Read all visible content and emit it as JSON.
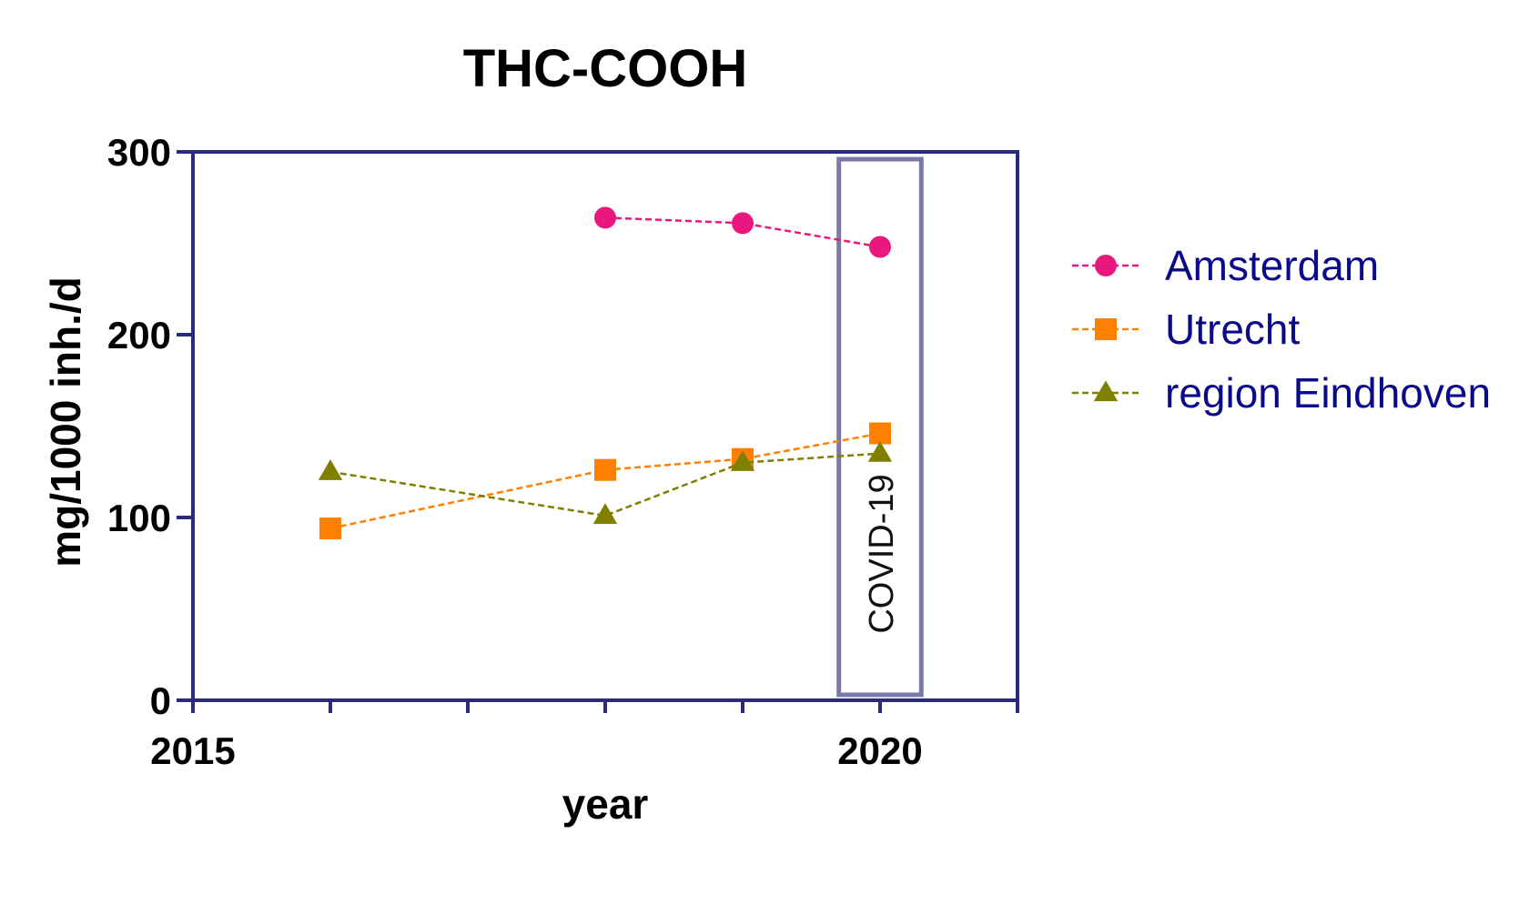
{
  "chart_data": {
    "type": "line",
    "title": "THC-COOH",
    "xlabel": "year",
    "ylabel": "mg/1000 inh./d",
    "xlim": [
      2015,
      2021
    ],
    "ylim": [
      0,
      300
    ],
    "x_ticks": [
      2015,
      2016,
      2017,
      2018,
      2019,
      2020,
      2021
    ],
    "x_tick_labels": [
      {
        "value": 2015,
        "label": "2015"
      },
      {
        "value": 2020,
        "label": "2020"
      }
    ],
    "y_ticks": [
      0,
      100,
      200,
      300
    ],
    "y_tick_labels": [
      "0",
      "100",
      "200",
      "300"
    ],
    "grid": false,
    "legend_position": "right",
    "series": [
      {
        "name": "Amsterdam",
        "color": "#e8187e",
        "marker": "circle",
        "line_style": "dashed",
        "points": [
          [
            2018,
            264
          ],
          [
            2019,
            261
          ],
          [
            2020,
            248
          ]
        ]
      },
      {
        "name": "Utrecht",
        "color": "#ff8000",
        "marker": "square",
        "line_style": "dashed",
        "points": [
          [
            2016,
            94
          ],
          [
            2018,
            126
          ],
          [
            2019,
            132
          ],
          [
            2020,
            146
          ]
        ]
      },
      {
        "name": "region Eindhoven",
        "color": "#7f7f00",
        "marker": "triangle",
        "line_style": "dashed",
        "points": [
          [
            2016,
            125
          ],
          [
            2018,
            101
          ],
          [
            2019,
            130
          ],
          [
            2020,
            135
          ]
        ]
      }
    ],
    "annotation": {
      "text": "COVID-19",
      "x_range": [
        2019.7,
        2020.3
      ],
      "y_range": [
        0,
        296
      ],
      "color": "#7a7aaa"
    }
  }
}
